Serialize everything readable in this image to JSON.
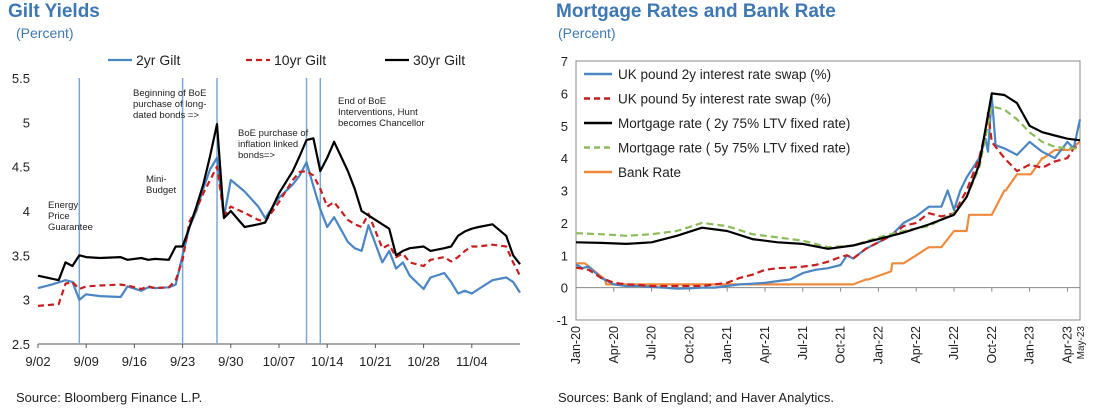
{
  "colors": {
    "title": "#3d78b4",
    "blue": "#4a86c3",
    "red": "#c81e1e",
    "black": "#000000",
    "green": "#8cbc5a",
    "orange": "#ef8a3c",
    "vline": "#7ba7d3"
  },
  "left": {
    "title": "Gilt Yields",
    "subtitle": "(Percent)",
    "source": "Source: Bloomberg Finance L.P."
  },
  "right": {
    "title": "Mortgage Rates and Bank Rate",
    "subtitle": "(Percent)",
    "source": "Sources: Bank of England; and Haver Analytics."
  },
  "chart_data": [
    {
      "type": "line",
      "title": "Gilt Yields",
      "subtitle": "(Percent)",
      "ylim": [
        2.5,
        5.5
      ],
      "yticks": [
        "2.5",
        "3",
        "3.5",
        "4",
        "4.5",
        "5",
        "5.5"
      ],
      "xlim": [
        0,
        70
      ],
      "xticks": [
        {
          "x": 0,
          "label": "9/02"
        },
        {
          "x": 7,
          "label": "9/09"
        },
        {
          "x": 14,
          "label": "9/16"
        },
        {
          "x": 21,
          "label": "9/23"
        },
        {
          "x": 28,
          "label": "9/30"
        },
        {
          "x": 35,
          "label": "10/07"
        },
        {
          "x": 42,
          "label": "10/14"
        },
        {
          "x": 49,
          "label": "10/21"
        },
        {
          "x": 56,
          "label": "10/28"
        },
        {
          "x": 63,
          "label": "11/04"
        }
      ],
      "legend_position": "top",
      "grid": false,
      "events": [
        {
          "x": 6,
          "label": "Energy Price Guarantee"
        },
        {
          "x": 21,
          "label": "Mini-Budget"
        },
        {
          "x": 26,
          "label": "Beginning of BoE purchase of long-dated bonds  =>"
        },
        {
          "x": 39,
          "label": "BoE purchase of inflation linked bonds=>"
        },
        {
          "x": 41,
          "label": "End of BoE Interventions, Hunt becomes Chancellor"
        }
      ],
      "series": [
        {
          "name": "2yr Gilt",
          "color": "#4a86c3",
          "dash": false,
          "x": [
            0,
            2,
            4,
            5,
            6,
            7,
            9,
            12,
            13,
            15,
            16,
            17,
            19,
            20,
            21,
            22,
            23,
            24,
            25,
            26,
            27,
            28,
            30,
            32,
            33,
            35,
            37,
            38,
            39,
            40,
            41,
            42,
            43,
            45,
            46,
            47,
            48,
            50,
            51,
            52,
            53,
            54,
            56,
            57,
            59,
            60,
            61,
            62,
            63,
            64,
            66,
            68,
            69,
            70
          ],
          "y": [
            3.13,
            3.17,
            3.22,
            3.2,
            3.0,
            3.06,
            3.04,
            3.03,
            3.15,
            3.1,
            3.14,
            3.13,
            3.14,
            3.17,
            3.5,
            3.82,
            4.0,
            4.25,
            4.47,
            4.6,
            3.93,
            4.35,
            4.22,
            4.05,
            3.92,
            4.15,
            4.3,
            4.4,
            4.55,
            4.28,
            4.02,
            3.82,
            3.93,
            3.65,
            3.58,
            3.55,
            3.84,
            3.42,
            3.55,
            3.35,
            3.42,
            3.27,
            3.12,
            3.25,
            3.3,
            3.2,
            3.07,
            3.1,
            3.07,
            3.12,
            3.22,
            3.25,
            3.2,
            3.08
          ]
        },
        {
          "name": "10yr Gilt",
          "color": "#c81e1e",
          "dash": true,
          "x": [
            0,
            3,
            4,
            5,
            6,
            7,
            9,
            12,
            13,
            15,
            16,
            17,
            19,
            20,
            21,
            22,
            23,
            24,
            25,
            26,
            27,
            28,
            30,
            32,
            33,
            35,
            37,
            38,
            39,
            40,
            41,
            42,
            43,
            45,
            46,
            47,
            48,
            50,
            51,
            52,
            53,
            54,
            56,
            57,
            59,
            60,
            61,
            62,
            63,
            64,
            66,
            68,
            69,
            70
          ],
          "y": [
            2.93,
            2.95,
            3.18,
            3.2,
            3.12,
            3.15,
            3.16,
            3.17,
            3.16,
            3.12,
            3.15,
            3.13,
            3.14,
            3.22,
            3.45,
            3.88,
            4.02,
            4.2,
            4.35,
            4.5,
            3.95,
            4.05,
            3.98,
            3.9,
            3.88,
            4.1,
            4.35,
            4.44,
            4.45,
            4.4,
            4.25,
            4.05,
            4.1,
            3.9,
            3.85,
            3.82,
            3.97,
            3.58,
            3.62,
            3.48,
            3.52,
            3.42,
            3.38,
            3.45,
            3.48,
            3.43,
            3.48,
            3.55,
            3.6,
            3.6,
            3.62,
            3.6,
            3.42,
            3.27
          ]
        },
        {
          "name": "30yr Gilt",
          "color": "#000000",
          "dash": false,
          "x": [
            0,
            3,
            4,
            5,
            6,
            7,
            9,
            12,
            13,
            15,
            16,
            17,
            19,
            20,
            21,
            22,
            23,
            24,
            25,
            26,
            27,
            28,
            30,
            32,
            33,
            35,
            37,
            38,
            39,
            40,
            41,
            42,
            43,
            45,
            46,
            47,
            48,
            50,
            51,
            52,
            53,
            54,
            56,
            57,
            59,
            60,
            61,
            62,
            63,
            64,
            66,
            68,
            69,
            70
          ],
          "y": [
            3.27,
            3.22,
            3.42,
            3.38,
            3.5,
            3.48,
            3.47,
            3.48,
            3.45,
            3.47,
            3.45,
            3.46,
            3.45,
            3.6,
            3.6,
            3.82,
            4.05,
            4.3,
            4.62,
            4.98,
            3.92,
            4.0,
            3.82,
            3.85,
            3.87,
            4.2,
            4.45,
            4.62,
            4.8,
            4.82,
            4.45,
            4.6,
            4.78,
            4.45,
            4.25,
            4.0,
            3.95,
            3.85,
            3.8,
            3.5,
            3.55,
            3.58,
            3.6,
            3.55,
            3.58,
            3.6,
            3.72,
            3.77,
            3.8,
            3.82,
            3.85,
            3.72,
            3.5,
            3.4
          ]
        }
      ]
    },
    {
      "type": "line",
      "title": "Mortgage Rates and Bank Rate",
      "subtitle": "(Percent)",
      "ylim": [
        -1,
        7
      ],
      "yticks": [
        "-1",
        "0",
        "1",
        "2",
        "3",
        "4",
        "5",
        "6",
        "7"
      ],
      "xlim": [
        0,
        40
      ],
      "xticks": [
        {
          "x": 0,
          "label": "Jan-20"
        },
        {
          "x": 3,
          "label": "Apr-20"
        },
        {
          "x": 6,
          "label": "Jul-20"
        },
        {
          "x": 9,
          "label": "Oct-20"
        },
        {
          "x": 12,
          "label": "Jan-21"
        },
        {
          "x": 15,
          "label": "Apr-21"
        },
        {
          "x": 18,
          "label": "Jul-21"
        },
        {
          "x": 21,
          "label": "Oct-21"
        },
        {
          "x": 24,
          "label": "Jan-22"
        },
        {
          "x": 27,
          "label": "Apr-22"
        },
        {
          "x": 30,
          "label": "Jul-22"
        },
        {
          "x": 33,
          "label": "Oct-22"
        },
        {
          "x": 36,
          "label": "Jan-23"
        },
        {
          "x": 39,
          "label": "Apr-23"
        },
        {
          "x": 40,
          "label": "May-23"
        }
      ],
      "legend_position": "top-left",
      "grid": false,
      "series": [
        {
          "name": "UK pound 2y interest rate swap (%)",
          "color": "#4a86c3",
          "dash": false,
          "x": [
            0,
            0.5,
            1,
            2,
            3,
            4,
            5,
            6,
            7,
            8,
            9,
            10,
            11,
            12,
            13,
            14,
            15,
            16,
            17,
            18,
            19,
            20,
            21,
            21.5,
            22,
            23,
            24,
            25,
            26,
            27,
            28,
            29,
            29.5,
            30,
            30.5,
            31,
            32,
            32.5,
            32.7,
            33,
            33.3,
            34,
            35,
            36,
            37,
            38,
            39,
            39.5,
            40
          ],
          "y": [
            0.72,
            0.6,
            0.65,
            0.3,
            0.1,
            0.05,
            0.05,
            0.02,
            0.0,
            -0.03,
            -0.02,
            0.0,
            0.0,
            0.05,
            0.1,
            0.12,
            0.15,
            0.2,
            0.25,
            0.45,
            0.55,
            0.6,
            0.7,
            1.0,
            0.9,
            1.2,
            1.4,
            1.6,
            2.0,
            2.2,
            2.5,
            2.5,
            3.0,
            2.4,
            3.0,
            3.4,
            4.0,
            4.6,
            4.2,
            5.9,
            4.4,
            4.3,
            4.1,
            4.5,
            4.2,
            4.0,
            4.5,
            4.3,
            5.2
          ]
        },
        {
          "name": "UK pound 5y interest rate swap (%)",
          "color": "#c81e1e",
          "dash": true,
          "x": [
            0,
            1,
            2,
            3,
            4,
            5,
            6,
            7,
            8,
            9,
            10,
            11,
            12,
            13,
            14,
            15,
            16,
            17,
            18,
            19,
            20,
            21,
            21.5,
            22,
            23,
            24,
            25,
            26,
            27,
            28,
            29,
            30,
            31,
            32,
            32.5,
            32.7,
            33,
            34,
            35,
            36,
            37,
            38,
            39,
            39.5,
            40
          ],
          "y": [
            0.62,
            0.55,
            0.3,
            0.15,
            0.1,
            0.08,
            0.05,
            0.05,
            0.05,
            0.05,
            0.05,
            0.1,
            0.15,
            0.3,
            0.4,
            0.55,
            0.6,
            0.62,
            0.65,
            0.7,
            0.8,
            0.95,
            1.0,
            0.9,
            1.2,
            1.4,
            1.6,
            1.9,
            2.0,
            2.3,
            2.2,
            2.3,
            3.0,
            4.0,
            4.8,
            5.4,
            4.5,
            4.0,
            3.6,
            3.8,
            3.7,
            3.9,
            4.0,
            4.3,
            4.4
          ]
        },
        {
          "name": "Mortgage rate ( 2y 75% LTV fixed rate)",
          "color": "#000000",
          "dash": false,
          "x": [
            0,
            2,
            4,
            6,
            8,
            10,
            12,
            14,
            16,
            18,
            20,
            22,
            24,
            26,
            28,
            30,
            31,
            32,
            33,
            34,
            35,
            36,
            37,
            38,
            39,
            40
          ],
          "y": [
            1.4,
            1.38,
            1.35,
            1.4,
            1.6,
            1.85,
            1.75,
            1.5,
            1.4,
            1.35,
            1.2,
            1.3,
            1.5,
            1.7,
            1.95,
            2.25,
            2.8,
            3.8,
            6.0,
            5.95,
            5.7,
            5.0,
            4.8,
            4.7,
            4.6,
            4.55
          ]
        },
        {
          "name": "Mortgage rate ( 5y 75% LTV fixed rate)",
          "color": "#8cbc5a",
          "dash": true,
          "x": [
            0,
            2,
            4,
            6,
            8,
            10,
            12,
            14,
            16,
            18,
            20,
            22,
            24,
            26,
            28,
            30,
            31,
            32,
            33,
            34,
            35,
            36,
            37,
            38,
            39,
            40
          ],
          "y": [
            1.68,
            1.65,
            1.6,
            1.65,
            1.75,
            2.0,
            1.9,
            1.65,
            1.55,
            1.45,
            1.25,
            1.3,
            1.55,
            1.75,
            1.9,
            2.3,
            2.8,
            3.7,
            5.6,
            5.5,
            5.2,
            4.8,
            4.5,
            4.35,
            4.3,
            4.3
          ]
        },
        {
          "name": "Bank Rate",
          "color": "#ef8a3c",
          "dash": false,
          "x": [
            0,
            0.7,
            2.3,
            2.4,
            21,
            22,
            23,
            23.2,
            25,
            25.1,
            26,
            27,
            28,
            29,
            30,
            31,
            31.2,
            32,
            32.1,
            33,
            34,
            34.1,
            35,
            36,
            36.1,
            37,
            37.1,
            38,
            39,
            39.1,
            40
          ],
          "y": [
            0.75,
            0.75,
            0.25,
            0.1,
            0.1,
            0.1,
            0.25,
            0.25,
            0.5,
            0.75,
            0.75,
            1.0,
            1.25,
            1.25,
            1.75,
            1.75,
            2.25,
            2.25,
            2.25,
            2.25,
            3.0,
            3.0,
            3.5,
            3.5,
            3.5,
            4.0,
            4.0,
            4.25,
            4.25,
            4.25,
            4.5
          ]
        }
      ]
    }
  ]
}
